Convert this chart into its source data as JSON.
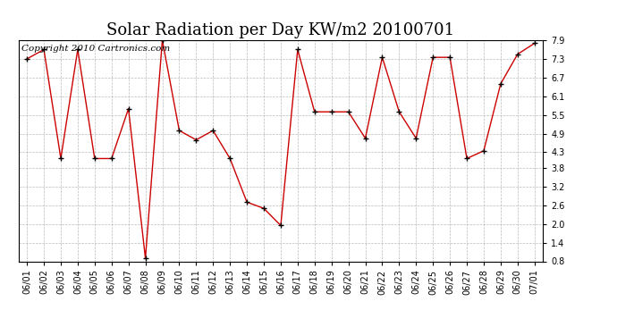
{
  "title": "Solar Radiation per Day KW/m2 20100701",
  "copyright_text": "Copyright 2010 Cartronics.com",
  "x_labels": [
    "06/01",
    "06/02",
    "06/03",
    "06/04",
    "06/05",
    "06/06",
    "06/07",
    "06/08",
    "06/09",
    "06/10",
    "06/11",
    "06/12",
    "06/13",
    "06/14",
    "06/15",
    "06/16",
    "06/17",
    "06/18",
    "06/19",
    "06/20",
    "06/21",
    "06/22",
    "06/23",
    "06/24",
    "06/25",
    "06/26",
    "06/27",
    "06/28",
    "06/29",
    "06/30",
    "07/01"
  ],
  "y_values": [
    7.3,
    7.6,
    4.1,
    7.6,
    4.1,
    4.1,
    5.7,
    0.9,
    7.9,
    5.0,
    4.7,
    5.0,
    4.1,
    2.7,
    2.5,
    1.95,
    7.6,
    5.6,
    5.6,
    5.6,
    4.75,
    7.35,
    5.6,
    4.75,
    7.35,
    7.35,
    4.1,
    4.35,
    6.5,
    7.45,
    7.8
  ],
  "yticks": [
    0.8,
    1.4,
    2.0,
    2.6,
    3.2,
    3.8,
    4.3,
    4.9,
    5.5,
    6.1,
    6.7,
    7.3,
    7.9
  ],
  "ylim": [
    0.8,
    7.9
  ],
  "line_color": "#cc0000",
  "marker": "+",
  "marker_color": "#000000",
  "background_color": "#ffffff",
  "grid_color": "#aaaaaa",
  "title_fontsize": 13,
  "copyright_fontsize": 7.5,
  "tick_fontsize": 7,
  "figwidth": 6.9,
  "figheight": 3.75,
  "dpi": 100
}
